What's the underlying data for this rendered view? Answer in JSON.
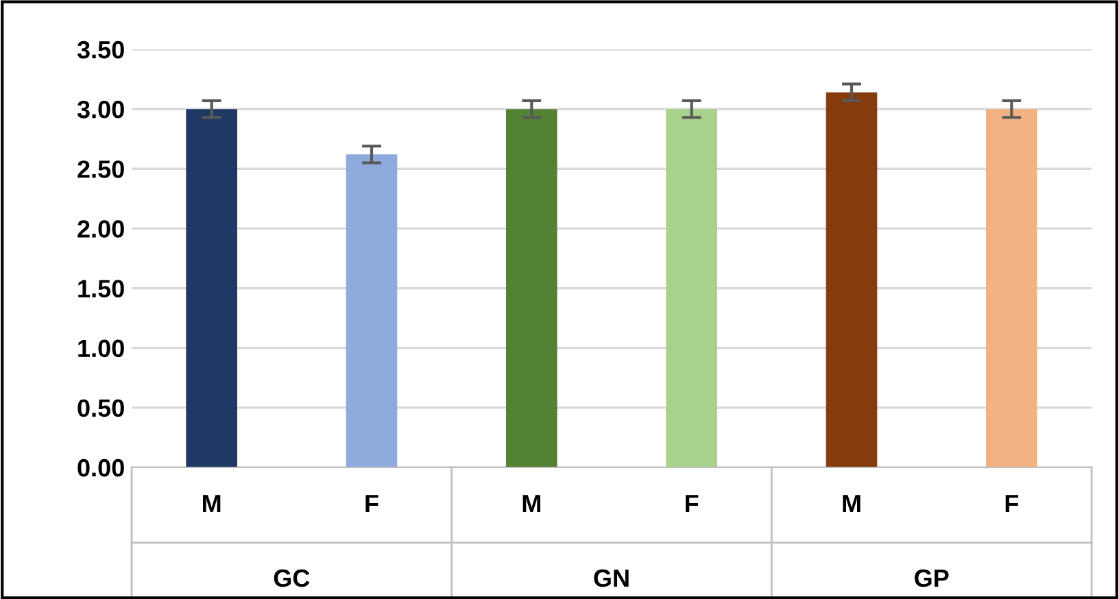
{
  "chart_data": {
    "type": "bar",
    "categories": [
      "M",
      "F",
      "M",
      "F",
      "M",
      "F"
    ],
    "values": [
      3.0,
      2.62,
      3.0,
      3.0,
      3.14,
      3.0
    ],
    "errors": [
      0.07,
      0.07,
      0.07,
      0.07,
      0.07,
      0.07
    ],
    "colors": [
      "#203864",
      "#8faadc",
      "#548235",
      "#a9d18e",
      "#843c0c",
      "#f4b183"
    ],
    "annotations": [
      "GC",
      "GN",
      "GP"
    ],
    "ylim": [
      0,
      3.5
    ],
    "yticks": [
      {
        "value": 0,
        "label": "0.00"
      },
      {
        "value": 0.5,
        "label": "0.50"
      },
      {
        "value": 1,
        "label": "1.00"
      },
      {
        "value": 1.5,
        "label": "1.50"
      },
      {
        "value": 2,
        "label": "2.00"
      },
      {
        "value": 2.5,
        "label": "2.50"
      },
      {
        "value": 3,
        "label": "3.00"
      },
      {
        "value": 3.5,
        "label": "3.50"
      }
    ],
    "grid": "y",
    "legend": false
  }
}
